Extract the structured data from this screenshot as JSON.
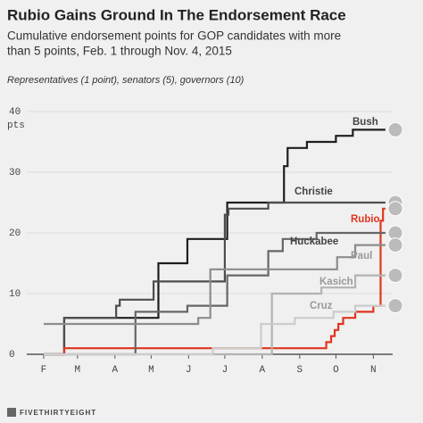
{
  "chart_data": {
    "type": "line",
    "title": "Rubio Gains Ground In The Endorsement Race",
    "subtitle": [
      "Cumulative endorsement points for GOP candidates with more",
      "than 5 points, Feb. 1 through Nov. 4, 2015"
    ],
    "note": "Representatives (1 point), senators (5), governors (10)",
    "y_unit": "pts",
    "footer": "FIVETHIRTYEIGHT",
    "step": true,
    "grid": true,
    "xlim": [
      18,
      321
    ],
    "xticks": [
      {
        "value": 32,
        "label": "F"
      },
      {
        "value": 60,
        "label": "M"
      },
      {
        "value": 91,
        "label": "A"
      },
      {
        "value": 121,
        "label": "M"
      },
      {
        "value": 152,
        "label": "J"
      },
      {
        "value": 182,
        "label": "J"
      },
      {
        "value": 213,
        "label": "A"
      },
      {
        "value": 244,
        "label": "S"
      },
      {
        "value": 274,
        "label": "O"
      },
      {
        "value": 305,
        "label": "N"
      }
    ],
    "ylim": [
      0,
      40
    ],
    "yticks": [
      0,
      10,
      20,
      30,
      40
    ],
    "series": [
      {
        "name": "Bush",
        "color": "#1e1e1e",
        "x": [
          32,
          49,
          127,
          151,
          184,
          231,
          234,
          250,
          274,
          288,
          315
        ],
        "values": [
          0,
          6,
          15,
          19,
          25,
          31,
          34,
          35,
          36,
          37,
          37
        ]
      },
      {
        "name": "Christie",
        "color": "#4d4d4d",
        "x": [
          32,
          49,
          92,
          95,
          123,
          182,
          185,
          218,
          315
        ],
        "values": [
          0,
          6,
          8,
          9,
          12,
          23,
          24,
          25,
          25
        ]
      },
      {
        "name": "Rubio",
        "color": "#e0351f",
        "x": [
          32,
          49,
          266,
          270,
          273,
          276,
          280,
          290,
          305,
          311,
          313,
          315
        ],
        "values": [
          0,
          1,
          2,
          3,
          4,
          5,
          6,
          7,
          8,
          22,
          24,
          24
        ]
      },
      {
        "name": "Huckabee",
        "color": "#666666",
        "x": [
          32,
          108,
          151,
          184,
          218,
          230,
          258,
          315
        ],
        "values": [
          0,
          7,
          8,
          13,
          17,
          19,
          20,
          20
        ]
      },
      {
        "name": "Paul",
        "color": "#8c8c8c",
        "x": [
          32,
          160,
          170,
          258,
          275,
          290,
          315
        ],
        "values": [
          5,
          6,
          14,
          14,
          16,
          18,
          18
        ]
      },
      {
        "name": "Kasich",
        "color": "#b3b3b3",
        "x": [
          32,
          221,
          262,
          290,
          315
        ],
        "values": [
          0,
          10,
          11,
          13,
          13
        ]
      },
      {
        "name": "Cruz",
        "color": "#cccccc",
        "x": [
          32,
          172,
          212,
          240,
          272,
          290,
          315
        ],
        "values": [
          0,
          1,
          5,
          6,
          7,
          8,
          8
        ]
      }
    ]
  }
}
